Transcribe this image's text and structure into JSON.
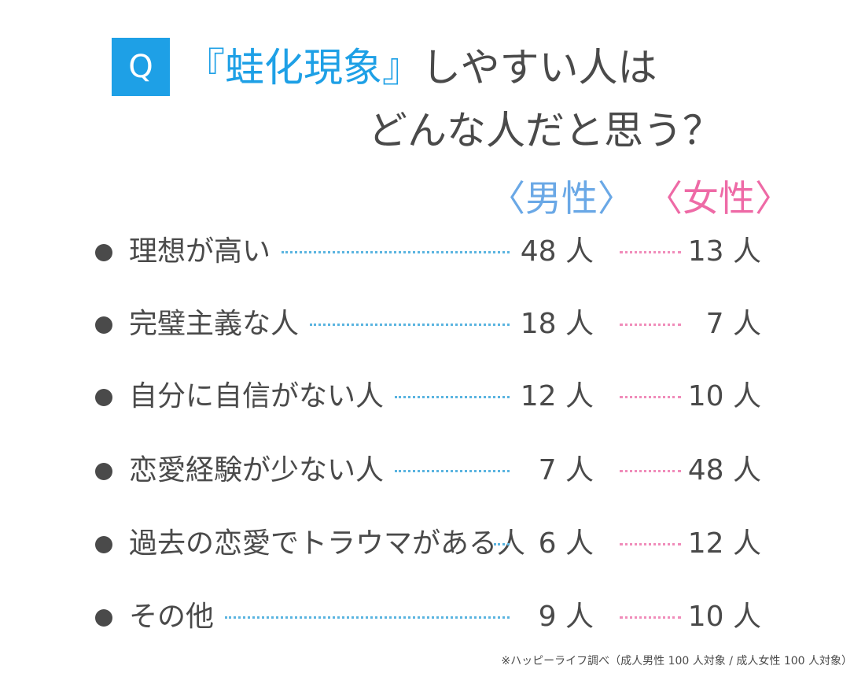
{
  "badge": "Q",
  "title": {
    "highlight": "『蛙化現象』",
    "rest_line1": "しやすい人は",
    "line2": "どんな人だと思う？"
  },
  "chart_data": {
    "type": "table",
    "columns": [
      "〈男性〉",
      "〈女性〉"
    ],
    "unit": "人",
    "series": [
      {
        "name": "〈男性〉",
        "values": [
          48,
          18,
          12,
          7,
          6,
          9
        ]
      },
      {
        "name": "〈女性〉",
        "values": [
          13,
          7,
          10,
          48,
          12,
          10
        ]
      }
    ],
    "categories": [
      "理想が高い",
      "完璧主義な人",
      "自分に自信がない人",
      "恋愛経験が少ない人",
      "過去の恋愛でトラウマがある人",
      "その他"
    ],
    "rows": [
      {
        "label": "理想が高い",
        "male": "48 人",
        "female": "13 人"
      },
      {
        "label": "完璧主義な人",
        "male": "18 人",
        "female": "7 人"
      },
      {
        "label": "自分に自信がない人",
        "male": "12 人",
        "female": "10 人"
      },
      {
        "label": "恋愛経験が少ない人",
        "male": "7 人",
        "female": "48 人"
      },
      {
        "label": "過去の恋愛でトラウマがある人",
        "male": "6 人",
        "female": "12 人"
      },
      {
        "label": "その他",
        "male": "9 人",
        "female": "10 人"
      }
    ],
    "footnote": "※ハッピーライフ調べ（成人男性 100 人対象 / 成人女性 100 人対象）"
  },
  "colors": {
    "accent_blue": "#1ea0e6",
    "male_head": "#6aa8e6",
    "female_head": "#ee6aa6",
    "text": "#4a4a4a",
    "male_dots": "#5ab4e0",
    "female_dots": "#f08cba"
  }
}
